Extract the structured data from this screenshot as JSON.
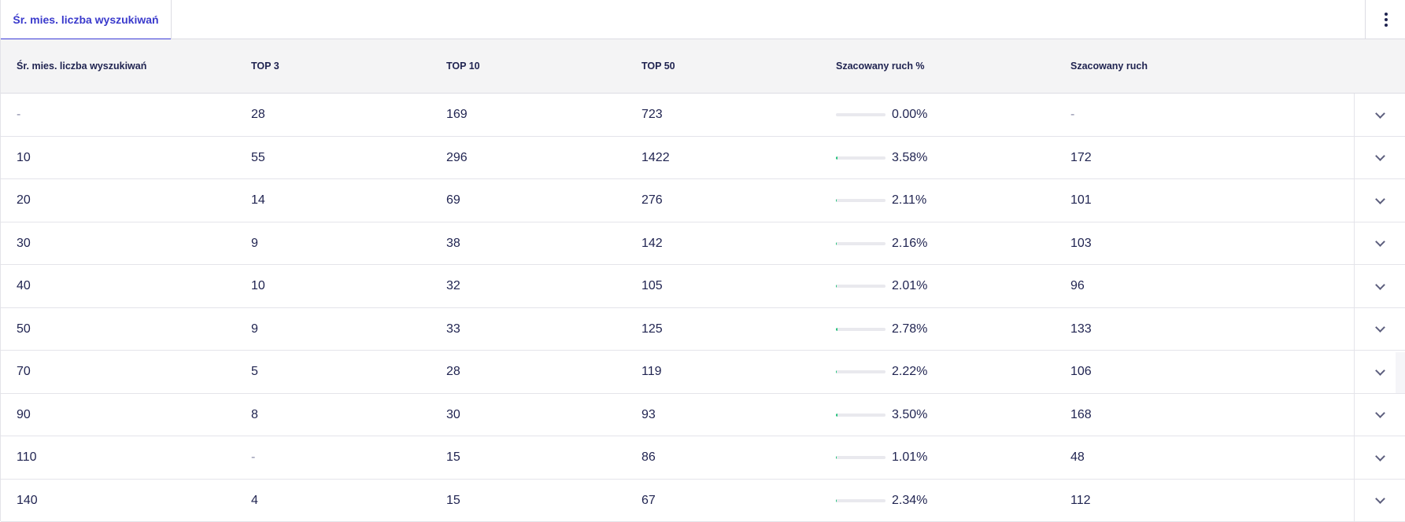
{
  "tab": {
    "label": "Śr. mies. liczba wyszukiwań"
  },
  "columns": [
    "Śr. mies. liczba wyszukiwań",
    "TOP 3",
    "TOP 10",
    "TOP 50",
    "Szacowany ruch %",
    "Szacowany ruch"
  ],
  "rows": [
    {
      "volume": "-",
      "top3": "28",
      "top10": "169",
      "top50": "723",
      "traffic_pct": "0.00%",
      "traffic_fraction": 0.0,
      "traffic": "-"
    },
    {
      "volume": "10",
      "top3": "55",
      "top10": "296",
      "top50": "1422",
      "traffic_pct": "3.58%",
      "traffic_fraction": 0.0358,
      "traffic": "172"
    },
    {
      "volume": "20",
      "top3": "14",
      "top10": "69",
      "top50": "276",
      "traffic_pct": "2.11%",
      "traffic_fraction": 0.0211,
      "traffic": "101"
    },
    {
      "volume": "30",
      "top3": "9",
      "top10": "38",
      "top50": "142",
      "traffic_pct": "2.16%",
      "traffic_fraction": 0.0216,
      "traffic": "103"
    },
    {
      "volume": "40",
      "top3": "10",
      "top10": "32",
      "top50": "105",
      "traffic_pct": "2.01%",
      "traffic_fraction": 0.0201,
      "traffic": "96"
    },
    {
      "volume": "50",
      "top3": "9",
      "top10": "33",
      "top50": "125",
      "traffic_pct": "2.78%",
      "traffic_fraction": 0.0278,
      "traffic": "133"
    },
    {
      "volume": "70",
      "top3": "5",
      "top10": "28",
      "top50": "119",
      "traffic_pct": "2.22%",
      "traffic_fraction": 0.0222,
      "traffic": "106"
    },
    {
      "volume": "90",
      "top3": "8",
      "top10": "30",
      "top50": "93",
      "traffic_pct": "3.50%",
      "traffic_fraction": 0.035,
      "traffic": "168"
    },
    {
      "volume": "110",
      "top3": "-",
      "top10": "15",
      "top50": "86",
      "traffic_pct": "1.01%",
      "traffic_fraction": 0.0101,
      "traffic": "48"
    },
    {
      "volume": "140",
      "top3": "4",
      "top10": "15",
      "top50": "67",
      "traffic_pct": "2.34%",
      "traffic_fraction": 0.0234,
      "traffic": "112"
    }
  ],
  "colors": {
    "accent": "#3b3bd6",
    "bar_fill": "#22c27a",
    "bar_track": "#e9e9ee",
    "text": "#1f2350"
  },
  "icons": {
    "menu": "kebab-menu-icon",
    "expand": "chevron-down-icon"
  }
}
